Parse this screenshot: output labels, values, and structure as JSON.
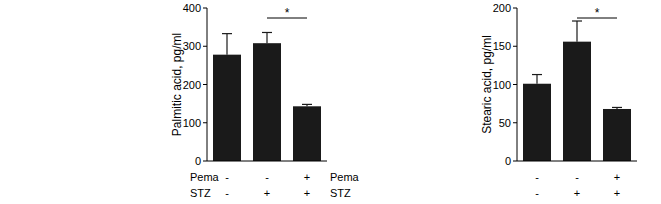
{
  "chart_data": [
    {
      "type": "bar",
      "y_label": "Palmitic acid, pg/ml",
      "categories": [
        null,
        null,
        null
      ],
      "values": [
        278,
        308,
        143
      ],
      "errors": [
        55,
        28,
        5
      ],
      "color": "#1a1a1a",
      "ylim": [
        0,
        400
      ],
      "yticks": [
        0,
        100,
        200,
        300,
        400
      ],
      "treatments": [
        {
          "name": "Pema",
          "levels": [
            "-",
            "-",
            "+"
          ]
        },
        {
          "name": "STZ",
          "levels": [
            "-",
            "+",
            "+"
          ]
        }
      ],
      "significance": [
        {
          "label": "*",
          "between": [
            1,
            2
          ]
        }
      ]
    },
    {
      "type": "bar",
      "y_label": "Stearic acid, pg/ml",
      "categories": [
        null,
        null,
        null
      ],
      "values": [
        101,
        156,
        68
      ],
      "errors": [
        12,
        27,
        2
      ],
      "color": "#1a1a1a",
      "ylim": [
        0,
        200
      ],
      "yticks": [
        0,
        50,
        100,
        150,
        200
      ],
      "treatments": [
        {
          "name": "Pema",
          "levels": [
            "-",
            "-",
            "+"
          ]
        },
        {
          "name": "STZ",
          "levels": [
            "-",
            "+",
            "+"
          ]
        }
      ],
      "significance": [
        {
          "label": "*",
          "between": [
            1,
            2
          ]
        }
      ]
    }
  ]
}
